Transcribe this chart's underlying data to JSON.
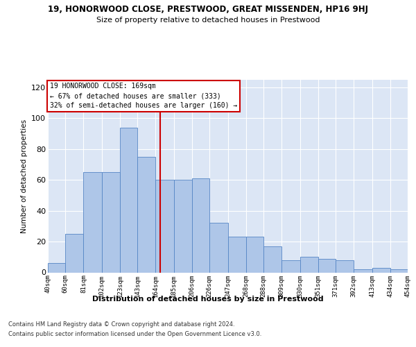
{
  "title": "19, HONORWOOD CLOSE, PRESTWOOD, GREAT MISSENDEN, HP16 9HJ",
  "subtitle": "Size of property relative to detached houses in Prestwood",
  "xlabel": "Distribution of detached houses by size in Prestwood",
  "ylabel": "Number of detached properties",
  "tick_vals": [
    40,
    60,
    81,
    102,
    123,
    143,
    164,
    185,
    206,
    226,
    247,
    268,
    288,
    309,
    330,
    351,
    371,
    392,
    413,
    434,
    454
  ],
  "tick_labels": [
    "40sqm",
    "60sqm",
    "81sqm",
    "102sqm",
    "123sqm",
    "143sqm",
    "164sqm",
    "185sqm",
    "206sqm",
    "226sqm",
    "247sqm",
    "268sqm",
    "288sqm",
    "309sqm",
    "330sqm",
    "351sqm",
    "371sqm",
    "392sqm",
    "413sqm",
    "434sqm",
    "454sqm"
  ],
  "bar_heights": [
    6,
    25,
    65,
    65,
    94,
    75,
    60,
    60,
    61,
    32,
    23,
    23,
    17,
    8,
    10,
    9,
    8,
    2,
    3,
    2
  ],
  "bar_color": "#aec6e8",
  "bar_edge_color": "#5585c5",
  "vline_x": 169,
  "vline_color": "#cc0000",
  "ylim": [
    0,
    125
  ],
  "yticks": [
    0,
    20,
    40,
    60,
    80,
    100,
    120
  ],
  "annotation_lines": [
    "19 HONORWOOD CLOSE: 169sqm",
    "← 67% of detached houses are smaller (333)",
    "32% of semi-detached houses are larger (160) →"
  ],
  "annotation_box_color": "#cc0000",
  "footer_lines": [
    "Contains HM Land Registry data © Crown copyright and database right 2024.",
    "Contains public sector information licensed under the Open Government Licence v3.0."
  ],
  "bg_color": "#dce6f5",
  "grid_color": "#ffffff"
}
